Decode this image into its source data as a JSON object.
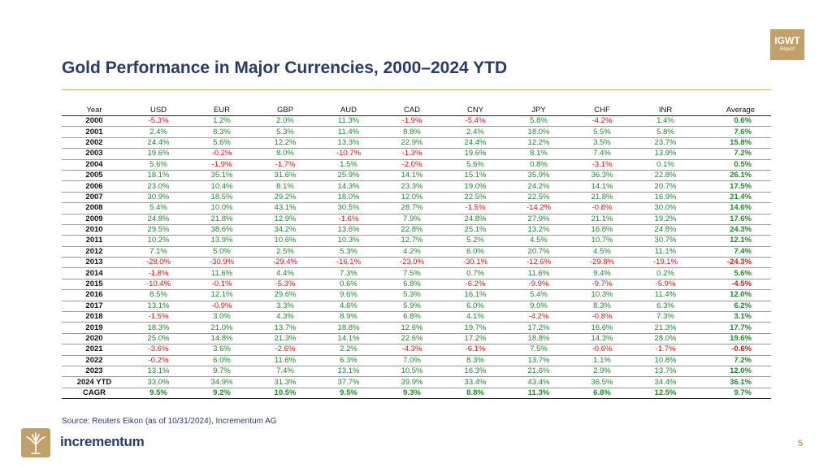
{
  "badge": {
    "line1": "IGWT",
    "line2": "Report"
  },
  "title": "Gold Performance in Major Currencies, 2000–2024 YTD",
  "table": {
    "headers": [
      "Year",
      "USD",
      "EUR",
      "GBP",
      "AUD",
      "CAD",
      "CNY",
      "JPY",
      "CHF",
      "INR",
      "Average"
    ],
    "rows": [
      [
        "2000",
        "-5.3%",
        "1.2%",
        "2.0%",
        "11.3%",
        "-1.9%",
        "-5.4%",
        "5.8%",
        "-4.2%",
        "1.4%",
        "0.6%"
      ],
      [
        "2001",
        "2.4%",
        "8.3%",
        "5.3%",
        "11.4%",
        "8.8%",
        "2.4%",
        "18.0%",
        "5.5%",
        "5.8%",
        "7.6%"
      ],
      [
        "2002",
        "24.4%",
        "5.6%",
        "12.2%",
        "13.3%",
        "22.9%",
        "24.4%",
        "12.2%",
        "3.5%",
        "23.7%",
        "15.8%"
      ],
      [
        "2003",
        "19.6%",
        "-0.2%",
        "8.0%",
        "-10.7%",
        "-1.3%",
        "19.6%",
        "8.1%",
        "7.4%",
        "13.9%",
        "7.2%"
      ],
      [
        "2004",
        "5.6%",
        "-1.9%",
        "-1.7%",
        "1.5%",
        "-2.0%",
        "5.6%",
        "0.8%",
        "-3.1%",
        "0.1%",
        "0.5%"
      ],
      [
        "2005",
        "18.1%",
        "35.1%",
        "31.6%",
        "25.9%",
        "14.1%",
        "15.1%",
        "35.9%",
        "36.3%",
        "22.8%",
        "26.1%"
      ],
      [
        "2006",
        "23.0%",
        "10.4%",
        "8.1%",
        "14.3%",
        "23.3%",
        "19.0%",
        "24.2%",
        "14.1%",
        "20.7%",
        "17.5%"
      ],
      [
        "2007",
        "30.9%",
        "18.5%",
        "29.2%",
        "18.0%",
        "12.0%",
        "22.5%",
        "22.5%",
        "21.8%",
        "16.9%",
        "21.4%"
      ],
      [
        "2008",
        "5.4%",
        "10.0%",
        "43.1%",
        "30.5%",
        "28.7%",
        "-1.5%",
        "-14.2%",
        "-0.8%",
        "30.0%",
        "14.6%"
      ],
      [
        "2009",
        "24.8%",
        "21.8%",
        "12.9%",
        "-1.6%",
        "7.9%",
        "24.8%",
        "27.9%",
        "21.1%",
        "19.2%",
        "17.6%"
      ],
      [
        "2010",
        "29.5%",
        "38.6%",
        "34.2%",
        "13.6%",
        "22.8%",
        "25.1%",
        "13.2%",
        "16.8%",
        "24.8%",
        "24.3%"
      ],
      [
        "2011",
        "10.2%",
        "13.9%",
        "10.6%",
        "10.3%",
        "12.7%",
        "5.2%",
        "4.5%",
        "10.7%",
        "30.7%",
        "12.1%"
      ],
      [
        "2012",
        "7.1%",
        "5.0%",
        "2.5%",
        "5.3%",
        "4.2%",
        "6.0%",
        "20.7%",
        "4.5%",
        "11.1%",
        "7.4%"
      ],
      [
        "2013",
        "-28.0%",
        "-30.9%",
        "-29.4%",
        "-16.1%",
        "-23.0%",
        "-30.1%",
        "-12.6%",
        "-29.8%",
        "-19.1%",
        "-24.3%"
      ],
      [
        "2014",
        "-1.8%",
        "11.6%",
        "4.4%",
        "7.3%",
        "7.5%",
        "0.7%",
        "11.6%",
        "9.4%",
        "0.2%",
        "5.6%"
      ],
      [
        "2015",
        "-10.4%",
        "-0.1%",
        "-5.3%",
        "0.6%",
        "6.8%",
        "-6.2%",
        "-9.9%",
        "-9.7%",
        "-5.9%",
        "-4.5%"
      ],
      [
        "2016",
        "8.5%",
        "12.1%",
        "29.6%",
        "9.6%",
        "5.3%",
        "16.1%",
        "5.4%",
        "10.3%",
        "11.4%",
        "12.0%"
      ],
      [
        "2017",
        "13.1%",
        "-0.9%",
        "3.3%",
        "4.6%",
        "5.9%",
        "6.0%",
        "9.0%",
        "8.3%",
        "6.3%",
        "6.2%"
      ],
      [
        "2018",
        "-1.5%",
        "3.0%",
        "4.3%",
        "8.9%",
        "6.8%",
        "4.1%",
        "-4.2%",
        "-0.8%",
        "7.3%",
        "3.1%"
      ],
      [
        "2019",
        "18.3%",
        "21.0%",
        "13.7%",
        "18.8%",
        "12.6%",
        "19.7%",
        "17.2%",
        "16.6%",
        "21.3%",
        "17.7%"
      ],
      [
        "2020",
        "25.0%",
        "14.8%",
        "21.3%",
        "14.1%",
        "22.6%",
        "17.2%",
        "18.8%",
        "14.3%",
        "28.0%",
        "19.6%"
      ],
      [
        "2021",
        "-3.6%",
        "3.6%",
        "-2.6%",
        "2.2%",
        "-4.3%",
        "-6.1%",
        "7.5%",
        "-0.6%",
        "-1.7%",
        "-0.6%"
      ],
      [
        "2022",
        "-0.2%",
        "6.0%",
        "11.6%",
        "6.3%",
        "7.0%",
        "8.3%",
        "13.7%",
        "1.1%",
        "10.8%",
        "7.2%"
      ],
      [
        "2023",
        "13.1%",
        "9.7%",
        "7.4%",
        "13.1%",
        "10.5%",
        "16.3%",
        "21.6%",
        "2.9%",
        "13.7%",
        "12.0%"
      ],
      [
        "2024 YTD",
        "33.0%",
        "34.9%",
        "31.3%",
        "37.7%",
        "39.9%",
        "33.4%",
        "43.4%",
        "36.5%",
        "34.4%",
        "36.1%"
      ],
      [
        "CAGR",
        "9.5%",
        "9.2%",
        "10.5%",
        "9.5%",
        "9.3%",
        "8.8%",
        "11.3%",
        "6.8%",
        "12.5%",
        "9.7%"
      ]
    ]
  },
  "source": "Source: Reuters Eikon (as of 10/31/2024), Incrementum AG",
  "logo": {
    "icon": "tree-icon",
    "text": "incrementum"
  },
  "page_number": "5",
  "colors": {
    "positive": "#1e8a2e",
    "negative": "#e01818",
    "brand": "#2b3a67",
    "gold": "#c2a06a"
  }
}
